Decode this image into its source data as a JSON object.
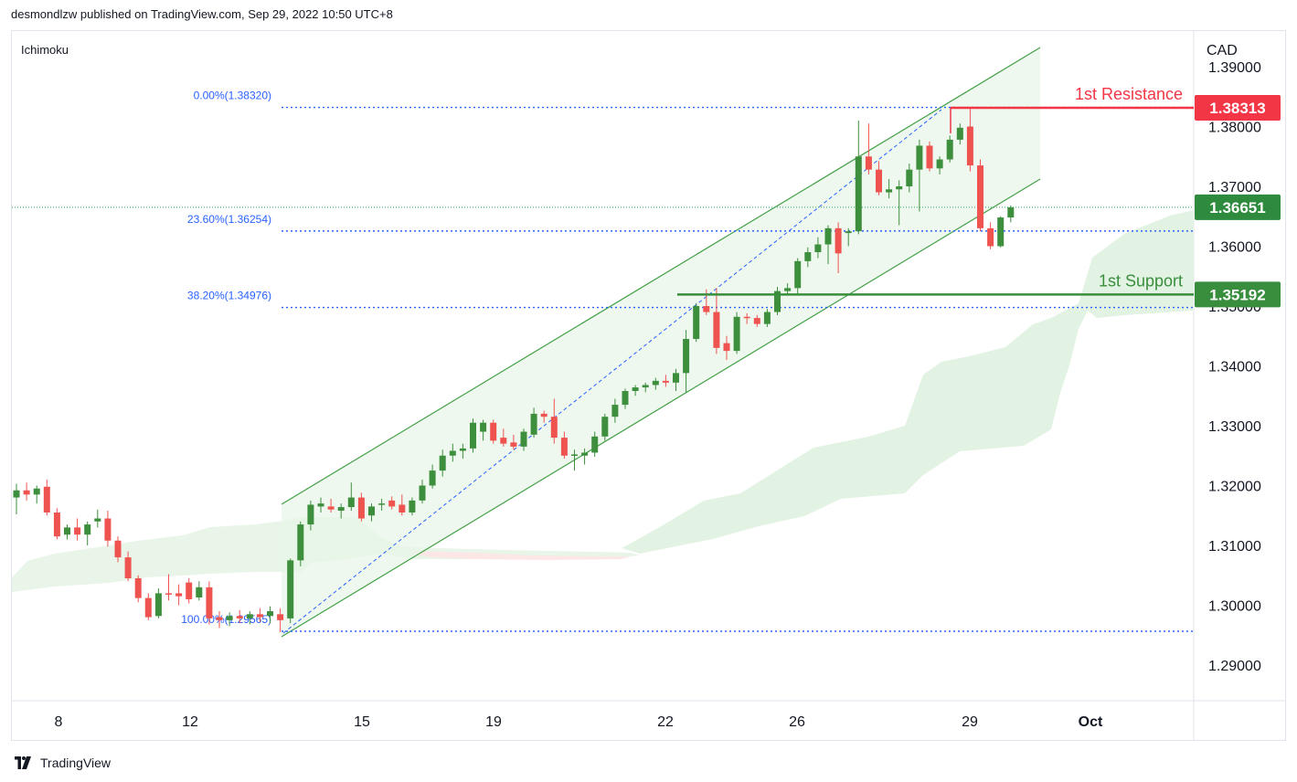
{
  "header": {
    "publisher_line": "desmondlzw published on TradingView.com, Sep 29, 2022 10:50 UTC+8"
  },
  "indicator_label": "Ichimoku",
  "currency": "CAD",
  "footer": {
    "brand": "TradingView"
  },
  "colors": {
    "bull": "#3d8f3d",
    "bear": "#ef5350",
    "fib": "#2962ff",
    "resistance": "#f23645",
    "support": "#388e3c",
    "channel": "#43a047",
    "cloud_bull": "#e3f3e3",
    "cloud_bear": "#fde4e4"
  },
  "chart_data": {
    "type": "candlestick",
    "ylim": [
      1.282,
      1.395
    ],
    "y_ticks": [
      "1.39000",
      "1.38000",
      "1.37000",
      "1.36000",
      "1.35000",
      "1.34000",
      "1.33000",
      "1.32000",
      "1.31000",
      "1.30000",
      "1.29000"
    ],
    "x_ticks": [
      "8",
      "12",
      "15",
      "19",
      "22",
      "26",
      "29",
      "Oct"
    ],
    "fib_levels": [
      {
        "label": "0.00%(1.38320)",
        "value": 1.3832
      },
      {
        "label": "23.60%(1.36254)",
        "value": 1.36254
      },
      {
        "label": "38.20%(1.34976)",
        "value": 1.34976
      },
      {
        "label": "100.00%(1.29565)",
        "value": 1.29565
      }
    ],
    "resistance": {
      "label": "1st Resistance",
      "value": "1.38313"
    },
    "support": {
      "label": "1st Support",
      "value": "1.35192"
    },
    "last_price": {
      "value": "1.36651",
      "numeric": 1.36651
    },
    "candles": [
      {
        "o": 1.318,
        "h": 1.3203,
        "l": 1.3152,
        "c": 1.3192
      },
      {
        "o": 1.3192,
        "h": 1.3205,
        "l": 1.3175,
        "c": 1.3185
      },
      {
        "o": 1.3185,
        "h": 1.32,
        "l": 1.317,
        "c": 1.3195
      },
      {
        "o": 1.3198,
        "h": 1.321,
        "l": 1.315,
        "c": 1.3155
      },
      {
        "o": 1.3155,
        "h": 1.3162,
        "l": 1.311,
        "c": 1.3115
      },
      {
        "o": 1.3118,
        "h": 1.3135,
        "l": 1.311,
        "c": 1.313
      },
      {
        "o": 1.313,
        "h": 1.3145,
        "l": 1.3108,
        "c": 1.3118
      },
      {
        "o": 1.3118,
        "h": 1.314,
        "l": 1.31,
        "c": 1.3135
      },
      {
        "o": 1.314,
        "h": 1.316,
        "l": 1.313,
        "c": 1.3145
      },
      {
        "o": 1.3145,
        "h": 1.3158,
        "l": 1.3098,
        "c": 1.3108
      },
      {
        "o": 1.3108,
        "h": 1.3115,
        "l": 1.3072,
        "c": 1.308
      },
      {
        "o": 1.308,
        "h": 1.309,
        "l": 1.304,
        "c": 1.3045
      },
      {
        "o": 1.3045,
        "h": 1.305,
        "l": 1.3005,
        "c": 1.3012
      },
      {
        "o": 1.3012,
        "h": 1.302,
        "l": 1.2975,
        "c": 1.298
      },
      {
        "o": 1.2982,
        "h": 1.3028,
        "l": 1.2978,
        "c": 1.302
      },
      {
        "o": 1.302,
        "h": 1.3052,
        "l": 1.3008,
        "c": 1.3018
      },
      {
        "o": 1.302,
        "h": 1.3035,
        "l": 1.3,
        "c": 1.3015
      },
      {
        "o": 1.3038,
        "h": 1.3045,
        "l": 1.3003,
        "c": 1.301
      },
      {
        "o": 1.3013,
        "h": 1.304,
        "l": 1.3008,
        "c": 1.303
      },
      {
        "o": 1.303,
        "h": 1.304,
        "l": 1.2968,
        "c": 1.2978
      },
      {
        "o": 1.298,
        "h": 1.299,
        "l": 1.2962,
        "c": 1.2975
      },
      {
        "o": 1.2975,
        "h": 1.2988,
        "l": 1.2965,
        "c": 1.2982
      },
      {
        "o": 1.2982,
        "h": 1.2992,
        "l": 1.297,
        "c": 1.2978
      },
      {
        "o": 1.2978,
        "h": 1.299,
        "l": 1.2968,
        "c": 1.2985
      },
      {
        "o": 1.2985,
        "h": 1.2995,
        "l": 1.2972,
        "c": 1.298
      },
      {
        "o": 1.2982,
        "h": 1.2998,
        "l": 1.297,
        "c": 1.299
      },
      {
        "o": 1.2985,
        "h": 1.2995,
        "l": 1.2955,
        "c": 1.2975
      },
      {
        "o": 1.2978,
        "h": 1.3078,
        "l": 1.297,
        "c": 1.3075
      },
      {
        "o": 1.3075,
        "h": 1.314,
        "l": 1.3065,
        "c": 1.3135
      },
      {
        "o": 1.3135,
        "h": 1.3175,
        "l": 1.3125,
        "c": 1.3168
      },
      {
        "o": 1.3165,
        "h": 1.318,
        "l": 1.3155,
        "c": 1.317
      },
      {
        "o": 1.3165,
        "h": 1.3178,
        "l": 1.3155,
        "c": 1.316
      },
      {
        "o": 1.3158,
        "h": 1.317,
        "l": 1.3145,
        "c": 1.3164
      },
      {
        "o": 1.3164,
        "h": 1.3205,
        "l": 1.3158,
        "c": 1.318
      },
      {
        "o": 1.318,
        "h": 1.3188,
        "l": 1.314,
        "c": 1.3145
      },
      {
        "o": 1.315,
        "h": 1.317,
        "l": 1.314,
        "c": 1.3165
      },
      {
        "o": 1.3168,
        "h": 1.3178,
        "l": 1.3158,
        "c": 1.317
      },
      {
        "o": 1.3175,
        "h": 1.3182,
        "l": 1.316,
        "c": 1.3165
      },
      {
        "o": 1.3168,
        "h": 1.3185,
        "l": 1.315,
        "c": 1.3155
      },
      {
        "o": 1.3155,
        "h": 1.318,
        "l": 1.315,
        "c": 1.3175
      },
      {
        "o": 1.3175,
        "h": 1.321,
        "l": 1.317,
        "c": 1.32
      },
      {
        "o": 1.32,
        "h": 1.3235,
        "l": 1.3195,
        "c": 1.3225
      },
      {
        "o": 1.3225,
        "h": 1.326,
        "l": 1.3215,
        "c": 1.325
      },
      {
        "o": 1.325,
        "h": 1.327,
        "l": 1.324,
        "c": 1.3258
      },
      {
        "o": 1.3258,
        "h": 1.327,
        "l": 1.3245,
        "c": 1.3262
      },
      {
        "o": 1.3262,
        "h": 1.3312,
        "l": 1.3255,
        "c": 1.3305
      },
      {
        "o": 1.329,
        "h": 1.331,
        "l": 1.3275,
        "c": 1.3305
      },
      {
        "o": 1.3305,
        "h": 1.331,
        "l": 1.327,
        "c": 1.3275
      },
      {
        "o": 1.328,
        "h": 1.3295,
        "l": 1.3265,
        "c": 1.327
      },
      {
        "o": 1.3272,
        "h": 1.3285,
        "l": 1.326,
        "c": 1.3265
      },
      {
        "o": 1.3265,
        "h": 1.3295,
        "l": 1.3258,
        "c": 1.329
      },
      {
        "o": 1.3285,
        "h": 1.333,
        "l": 1.328,
        "c": 1.332
      },
      {
        "o": 1.332,
        "h": 1.3325,
        "l": 1.3305,
        "c": 1.3315
      },
      {
        "o": 1.3315,
        "h": 1.3345,
        "l": 1.327,
        "c": 1.328
      },
      {
        "o": 1.328,
        "h": 1.329,
        "l": 1.3245,
        "c": 1.325
      },
      {
        "o": 1.3252,
        "h": 1.326,
        "l": 1.3225,
        "c": 1.3252
      },
      {
        "o": 1.325,
        "h": 1.3262,
        "l": 1.3235,
        "c": 1.3255
      },
      {
        "o": 1.3255,
        "h": 1.329,
        "l": 1.3248,
        "c": 1.3282
      },
      {
        "o": 1.3282,
        "h": 1.332,
        "l": 1.3275,
        "c": 1.3315
      },
      {
        "o": 1.3315,
        "h": 1.3345,
        "l": 1.3305,
        "c": 1.3335
      },
      {
        "o": 1.3335,
        "h": 1.3362,
        "l": 1.3328,
        "c": 1.3358
      },
      {
        "o": 1.3358,
        "h": 1.3368,
        "l": 1.335,
        "c": 1.3364
      },
      {
        "o": 1.3364,
        "h": 1.3372,
        "l": 1.3356,
        "c": 1.3368
      },
      {
        "o": 1.3368,
        "h": 1.338,
        "l": 1.336,
        "c": 1.3375
      },
      {
        "o": 1.3375,
        "h": 1.3385,
        "l": 1.3365,
        "c": 1.3372
      },
      {
        "o": 1.3372,
        "h": 1.3395,
        "l": 1.3358,
        "c": 1.3388
      },
      {
        "o": 1.3388,
        "h": 1.346,
        "l": 1.3355,
        "c": 1.3445
      },
      {
        "o": 1.3445,
        "h": 1.3505,
        "l": 1.344,
        "c": 1.35
      },
      {
        "o": 1.35,
        "h": 1.3528,
        "l": 1.3485,
        "c": 1.349
      },
      {
        "o": 1.349,
        "h": 1.353,
        "l": 1.342,
        "c": 1.343
      },
      {
        "o": 1.3438,
        "h": 1.345,
        "l": 1.341,
        "c": 1.3425
      },
      {
        "o": 1.3425,
        "h": 1.349,
        "l": 1.342,
        "c": 1.3482
      },
      {
        "o": 1.3482,
        "h": 1.3488,
        "l": 1.347,
        "c": 1.348
      },
      {
        "o": 1.348,
        "h": 1.3485,
        "l": 1.3465,
        "c": 1.347
      },
      {
        "o": 1.347,
        "h": 1.3495,
        "l": 1.3465,
        "c": 1.349
      },
      {
        "o": 1.349,
        "h": 1.3532,
        "l": 1.3485,
        "c": 1.3525
      },
      {
        "o": 1.3525,
        "h": 1.3538,
        "l": 1.3518,
        "c": 1.353
      },
      {
        "o": 1.353,
        "h": 1.358,
        "l": 1.352,
        "c": 1.3575
      },
      {
        "o": 1.3575,
        "h": 1.3598,
        "l": 1.3565,
        "c": 1.359
      },
      {
        "o": 1.359,
        "h": 1.3615,
        "l": 1.358,
        "c": 1.3603
      },
      {
        "o": 1.3603,
        "h": 1.3635,
        "l": 1.357,
        "c": 1.363
      },
      {
        "o": 1.363,
        "h": 1.364,
        "l": 1.3555,
        "c": 1.3588
      },
      {
        "o": 1.3622,
        "h": 1.363,
        "l": 1.36,
        "c": 1.3625
      },
      {
        "o": 1.3625,
        "h": 1.381,
        "l": 1.362,
        "c": 1.375
      },
      {
        "o": 1.375,
        "h": 1.3805,
        "l": 1.372,
        "c": 1.3728
      },
      {
        "o": 1.3728,
        "h": 1.3742,
        "l": 1.3685,
        "c": 1.369
      },
      {
        "o": 1.369,
        "h": 1.3712,
        "l": 1.368,
        "c": 1.3695
      },
      {
        "o": 1.3695,
        "h": 1.371,
        "l": 1.3635,
        "c": 1.37
      },
      {
        "o": 1.37,
        "h": 1.3738,
        "l": 1.369,
        "c": 1.3728
      },
      {
        "o": 1.3728,
        "h": 1.3778,
        "l": 1.3658,
        "c": 1.3768
      },
      {
        "o": 1.3768,
        "h": 1.3775,
        "l": 1.3725,
        "c": 1.373
      },
      {
        "o": 1.373,
        "h": 1.375,
        "l": 1.372,
        "c": 1.3745
      },
      {
        "o": 1.3745,
        "h": 1.3785,
        "l": 1.374,
        "c": 1.3778
      },
      {
        "o": 1.3778,
        "h": 1.3805,
        "l": 1.377,
        "c": 1.3798
      },
      {
        "o": 1.38,
        "h": 1.3832,
        "l": 1.3725,
        "c": 1.3735
      },
      {
        "o": 1.3735,
        "h": 1.3745,
        "l": 1.3625,
        "c": 1.363
      },
      {
        "o": 1.363,
        "h": 1.364,
        "l": 1.3595,
        "c": 1.36
      },
      {
        "o": 1.36,
        "h": 1.365,
        "l": 1.3598,
        "c": 1.3648
      },
      {
        "o": 1.3648,
        "h": 1.3668,
        "l": 1.364,
        "c": 1.3665
      }
    ]
  }
}
